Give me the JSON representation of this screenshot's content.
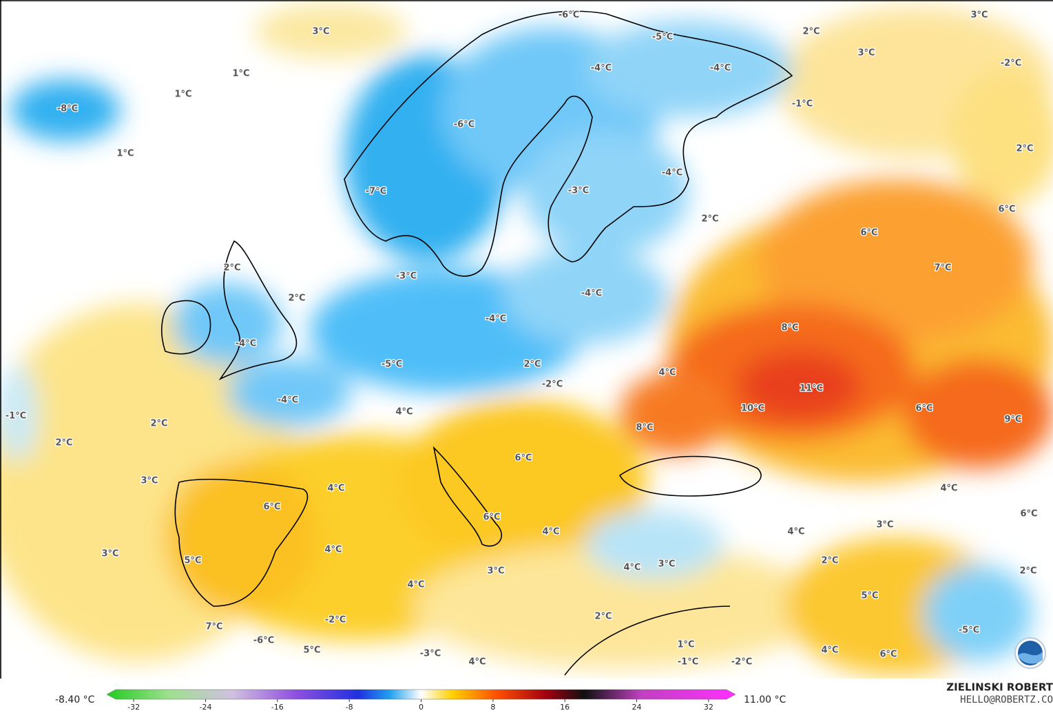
{
  "map": {
    "labels": [
      "3°C",
      "-6°C",
      "-5°C",
      "2°C",
      "3°C",
      "3°C",
      "-2°C",
      "1°C",
      "-4°C",
      "-4°C",
      "-8°C",
      "1°C",
      "-1°C",
      "-6°C",
      "1°C",
      "2°C",
      "-4°C",
      "-7°C",
      "-3°C",
      "2°C",
      "6°C",
      "6°C",
      "2°C",
      "7°C",
      "-3°C",
      "2°C",
      "-4°C",
      "-4°C",
      "8°C",
      "-4°C",
      "-5°C",
      "2°C",
      "4°C",
      "-2°C",
      "11°C",
      "-4°C",
      "10°C",
      "6°C",
      "4°C",
      "-1°C",
      "9°C",
      "2°C",
      "8°C",
      "2°C",
      "6°C",
      "3°C",
      "4°C",
      "4°C",
      "6°C",
      "6°C",
      "6°C",
      "3°C",
      "4°C",
      "4°C",
      "4°C",
      "3°C",
      "5°C",
      "2°C",
      "3°C",
      "4°C",
      "3°C",
      "2°C",
      "4°C",
      "5°C",
      "2°C",
      "-2°C",
      "7°C",
      "-5°C",
      "-6°C",
      "1°C",
      "5°C",
      "4°C",
      "-3°C",
      "6°C",
      "4°C",
      "-1°C",
      "-2°C"
    ],
    "min_label": "-8.40 °C",
    "max_label": "11.00 °C",
    "colorbar": {
      "range": [
        -35,
        35
      ],
      "ticks": [
        -32,
        -24,
        -16,
        -8,
        0,
        8,
        16,
        24,
        32
      ]
    },
    "credit": "ZIELINSKI ROBERT",
    "email": "HELLO@ROBERTZ.CO"
  }
}
